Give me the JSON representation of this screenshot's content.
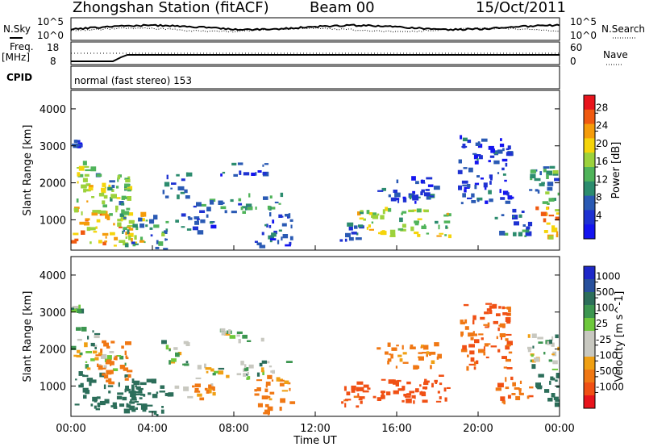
{
  "header": {
    "station": "Zhongshan Station (fitACF)",
    "beam": "Beam 00",
    "date": "15/Oct/2011"
  },
  "strip": {
    "nsky_label": "N.Sky",
    "nsearch_label": "N.Search",
    "noise_left_ticks": [
      "10^5",
      "10^0"
    ],
    "noise_right_ticks": [
      "10^5",
      "10^0"
    ],
    "freq_label": "Freq.",
    "freq_unit": "[MHz]",
    "freq_ticks": [
      "18",
      "8"
    ],
    "nave_label": "Nave",
    "nave_ticks": [
      "60",
      "0"
    ],
    "cpid_label": "CPID",
    "cpid_text": "normal (fast stereo) 153"
  },
  "colorbars": {
    "power": {
      "label": "Power [dB]",
      "ticks": [
        "28",
        "24",
        "20",
        "16",
        "12",
        "8",
        "4"
      ],
      "colors": [
        "#e8141c",
        "#f05a10",
        "#f59c0a",
        "#f5d40a",
        "#9cd23c",
        "#50b45a",
        "#2c8c6e",
        "#2a5ab4",
        "#1e32d2",
        "#1414f0"
      ]
    },
    "velocity": {
      "label": "Velocity [m s^-1]",
      "ticks": [
        "1000",
        "500",
        "100",
        "25",
        "-25",
        "-100",
        "-500",
        "-1000"
      ],
      "colors": [
        "#1e28c8",
        "#28509c",
        "#2c6e5a",
        "#3c9650",
        "#6ec83c",
        "#c8c8c0",
        "#c8c8c0",
        "#f0a014",
        "#f07814",
        "#f05014",
        "#e8141c"
      ]
    }
  },
  "chart_data": [
    {
      "type": "heatmap",
      "name": "power",
      "ylabel": "Slant Range [km]",
      "ylim": [
        180,
        4500
      ],
      "yticks": [
        1000,
        2000,
        3000,
        4000
      ],
      "xlim": [
        0,
        24
      ],
      "xticks_labels": [
        "00:00",
        "04:00",
        "08:00",
        "12:00",
        "16:00",
        "20:00",
        "00:00"
      ],
      "regions": [
        {
          "t0": 0.0,
          "t1": 0.4,
          "r0": 2900,
          "r1": 3100,
          "v": 6
        },
        {
          "t0": 0.0,
          "t1": 1.2,
          "r0": 1900,
          "r1": 2500,
          "v": 18
        },
        {
          "t0": 0.0,
          "t1": 2.8,
          "r0": 1400,
          "r1": 1900,
          "v": 20
        },
        {
          "t0": 0.0,
          "t1": 3.5,
          "r0": 250,
          "r1": 1300,
          "v": 22
        },
        {
          "t0": 1.2,
          "t1": 2.8,
          "r0": 1000,
          "r1": 2200,
          "v": 14
        },
        {
          "t0": 2.5,
          "t1": 4.8,
          "r0": 180,
          "r1": 1100,
          "v": 12
        },
        {
          "t0": 4.4,
          "t1": 5.7,
          "r0": 1500,
          "r1": 2200,
          "v": 10
        },
        {
          "t0": 5.0,
          "t1": 7.0,
          "r0": 600,
          "r1": 1100,
          "v": 9
        },
        {
          "t0": 6.0,
          "t1": 8.8,
          "r0": 1150,
          "r1": 1500,
          "v": 10
        },
        {
          "t0": 7.2,
          "t1": 9.6,
          "r0": 2150,
          "r1": 2500,
          "v": 8
        },
        {
          "t0": 8.2,
          "t1": 10.6,
          "r0": 1250,
          "r1": 1650,
          "v": 11
        },
        {
          "t0": 9.0,
          "t1": 10.8,
          "r0": 200,
          "r1": 1200,
          "v": 7
        },
        {
          "t0": 13.2,
          "t1": 14.2,
          "r0": 400,
          "r1": 900,
          "v": 8
        },
        {
          "t0": 14.0,
          "t1": 18.6,
          "r0": 500,
          "r1": 1250,
          "v": 18
        },
        {
          "t0": 15.0,
          "t1": 18.0,
          "r0": 1400,
          "r1": 2100,
          "v": 7
        },
        {
          "t0": 19.0,
          "t1": 21.5,
          "r0": 1400,
          "r1": 3200,
          "v": 6
        },
        {
          "t0": 20.8,
          "t1": 22.5,
          "r0": 500,
          "r1": 1200,
          "v": 10
        },
        {
          "t0": 22.4,
          "t1": 24.0,
          "r0": 1400,
          "r1": 2400,
          "v": 12
        },
        {
          "t0": 22.8,
          "t1": 24.0,
          "r0": 400,
          "r1": 1300,
          "v": 22
        }
      ]
    },
    {
      "type": "heatmap",
      "name": "velocity",
      "ylabel": "Slant Range [km]",
      "ylim": [
        180,
        4500
      ],
      "yticks": [
        1000,
        2000,
        3000,
        4000
      ],
      "xlim": [
        0,
        24
      ],
      "xticks_labels": [
        "00:00",
        "04:00",
        "08:00",
        "12:00",
        "16:00",
        "20:00",
        "00:00"
      ],
      "xlabel": "Time UT",
      "regions": [
        {
          "t0": 0.0,
          "t1": 0.4,
          "r0": 2950,
          "r1": 3100,
          "v": 50
        },
        {
          "t0": 0.0,
          "t1": 1.2,
          "r0": 1900,
          "r1": 2500,
          "v": 0
        },
        {
          "t0": 0.0,
          "t1": 2.8,
          "r0": 1400,
          "r1": 1900,
          "v": -10
        },
        {
          "t0": 0.0,
          "t1": 3.5,
          "r0": 250,
          "r1": 1300,
          "v": 200
        },
        {
          "t0": 1.2,
          "t1": 2.8,
          "r0": 1000,
          "r1": 2200,
          "v": -200
        },
        {
          "t0": 2.5,
          "t1": 4.8,
          "r0": 180,
          "r1": 1100,
          "v": 150
        },
        {
          "t0": 4.4,
          "t1": 5.7,
          "r0": 1500,
          "r1": 2200,
          "v": 0
        },
        {
          "t0": 5.0,
          "t1": 7.0,
          "r0": 600,
          "r1": 1100,
          "v": -120
        },
        {
          "t0": 6.0,
          "t1": 8.8,
          "r0": 1150,
          "r1": 1500,
          "v": 0
        },
        {
          "t0": 7.2,
          "t1": 9.6,
          "r0": 2150,
          "r1": 2500,
          "v": 0
        },
        {
          "t0": 8.2,
          "t1": 10.6,
          "r0": 1250,
          "r1": 1650,
          "v": 5
        },
        {
          "t0": 9.0,
          "t1": 10.8,
          "r0": 200,
          "r1": 1200,
          "v": -150
        },
        {
          "t0": 13.2,
          "t1": 14.2,
          "r0": 400,
          "r1": 900,
          "v": -300
        },
        {
          "t0": 14.0,
          "t1": 18.6,
          "r0": 500,
          "r1": 1250,
          "v": -400
        },
        {
          "t0": 15.0,
          "t1": 18.0,
          "r0": 1400,
          "r1": 2100,
          "v": -150
        },
        {
          "t0": 19.0,
          "t1": 21.5,
          "r0": 1400,
          "r1": 3200,
          "v": -300
        },
        {
          "t0": 20.8,
          "t1": 22.5,
          "r0": 500,
          "r1": 1200,
          "v": -250
        },
        {
          "t0": 22.4,
          "t1": 24.0,
          "r0": 1400,
          "r1": 2400,
          "v": 0
        },
        {
          "t0": 22.8,
          "t1": 24.0,
          "r0": 400,
          "r1": 1300,
          "v": 150
        }
      ]
    }
  ]
}
